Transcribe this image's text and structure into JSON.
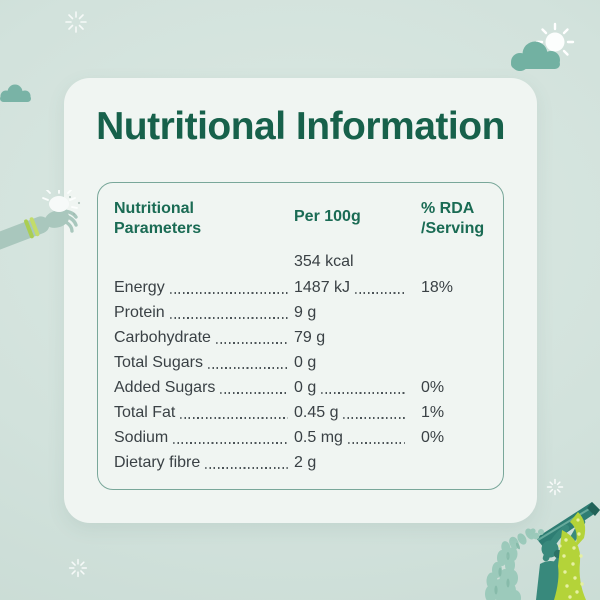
{
  "page": {
    "title_text": "Nutritional Information"
  },
  "table": {
    "headers": {
      "col1": "Nutritional Parameters",
      "col2": "Per 100g",
      "col3": "% RDA /Serving"
    },
    "rows": [
      {
        "label": "",
        "value": "354 kcal",
        "rda": ""
      },
      {
        "label": "Energy",
        "value": "1487 kJ",
        "rda": "18%"
      },
      {
        "label": "Protein",
        "value": "9 g",
        "rda": ""
      },
      {
        "label": "Carbohydrate",
        "value": "79 g",
        "rda": ""
      },
      {
        "label": "Total Sugars",
        "value": "0 g",
        "rda": ""
      },
      {
        "label": "Added Sugars",
        "value": "0 g",
        "rda": "0%"
      },
      {
        "label": "Total Fat",
        "value": "0.45 g",
        "rda": "1%"
      },
      {
        "label": "Sodium",
        "value": "0.5 mg",
        "rda": "0%"
      },
      {
        "label": "Dietary fibre",
        "value": "2 g",
        "rda": ""
      }
    ]
  },
  "colors": {
    "title_green": "#17614b",
    "header_green": "#1a6b54",
    "row_text": "#3a4145",
    "table_border": "#79a79a",
    "card_bg": "#f0f5f2",
    "page_bg": "#d2e2dc",
    "cloud_teal": "#74b2a3",
    "illustration_teal": "#38897c",
    "basket_teal": "#2e7d73",
    "grain_teal": "#9ccabb",
    "saree_green": "#b4d339",
    "bangle_green": "#aace52"
  },
  "decorations": [
    "sparkle-icon",
    "sun-behind-cloud-icon",
    "cloud-icon",
    "arm-with-bangles-illustration",
    "woman-winnowing-illustration"
  ]
}
